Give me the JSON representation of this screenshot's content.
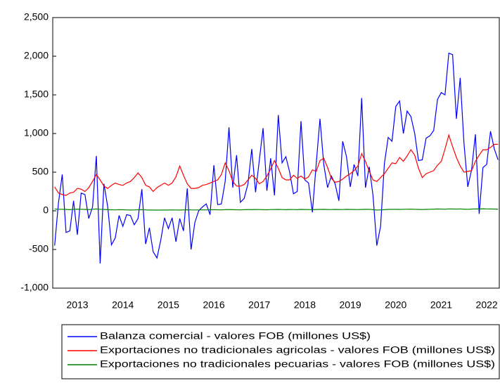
{
  "chart_data": {
    "type": "line",
    "categories": [
      null,
      null,
      null,
      null,
      null,
      null,
      "2013",
      null,
      null,
      null,
      null,
      null,
      null,
      null,
      null,
      null,
      null,
      null,
      "2014",
      null,
      null,
      null,
      null,
      null,
      null,
      null,
      null,
      null,
      null,
      null,
      "2015",
      null,
      null,
      null,
      null,
      null,
      null,
      null,
      null,
      null,
      null,
      null,
      "2016",
      null,
      null,
      null,
      null,
      null,
      null,
      null,
      null,
      null,
      null,
      null,
      "2017",
      null,
      null,
      null,
      null,
      null,
      null,
      null,
      null,
      null,
      null,
      null,
      "2018",
      null,
      null,
      null,
      null,
      null,
      null,
      null,
      null,
      null,
      null,
      null,
      "2019",
      null,
      null,
      null,
      null,
      null,
      null,
      null,
      null,
      null,
      null,
      null,
      "2020",
      null,
      null,
      null,
      null,
      null,
      null,
      null,
      null,
      null,
      null,
      null,
      "2021",
      null,
      null,
      null,
      null,
      null,
      null,
      null,
      null,
      null,
      null,
      null,
      "2022",
      null,
      null,
      null
    ],
    "ylim": [
      -1000,
      2500
    ],
    "yticks": [
      {
        "value": -1000,
        "label": "-1,000"
      },
      -500,
      0,
      500,
      {
        "value": 1000,
        "label": "1,000"
      },
      {
        "value": 1500,
        "label": "1,500"
      },
      {
        "value": 2000,
        "label": "2,000"
      },
      {
        "value": 2500,
        "label": "2,500"
      }
    ],
    "grid": false,
    "legend": "bottom",
    "series": [
      {
        "name": "Balanza comercial - valores FOB (millones US$)",
        "color": "#0000ff",
        "values": [
          -450,
          100,
          470,
          -280,
          -260,
          130,
          -310,
          230,
          210,
          -100,
          50,
          710,
          -680,
          350,
          50,
          -440,
          -350,
          -60,
          -200,
          -50,
          -60,
          -180,
          -100,
          280,
          -430,
          -220,
          -530,
          -610,
          -380,
          -90,
          -230,
          -90,
          -400,
          -100,
          -260,
          290,
          -500,
          -150,
          0,
          50,
          90,
          -50,
          590,
          80,
          90,
          380,
          1080,
          300,
          720,
          110,
          160,
          350,
          800,
          240,
          650,
          1070,
          260,
          680,
          200,
          1240,
          620,
          700,
          500,
          220,
          250,
          1160,
          400,
          360,
          -20,
          600,
          1190,
          600,
          300,
          450,
          350,
          130,
          900,
          700,
          310,
          600,
          450,
          1460,
          300,
          570,
          200,
          -450,
          -200,
          610,
          950,
          900,
          1350,
          1420,
          1000,
          1290,
          1220,
          1000,
          650,
          660,
          940,
          970,
          1040,
          1440,
          1530,
          1500,
          2040,
          2020,
          1190,
          1720,
          870,
          310,
          530,
          990,
          -40,
          560,
          600,
          1030,
          800,
          660
        ]
      },
      {
        "name": "Exportaciones no tradicionales agricolas - valores FOB (millones US$)",
        "color": "#ff0000",
        "values": [
          310,
          230,
          210,
          200,
          230,
          240,
          290,
          280,
          250,
          300,
          380,
          470,
          400,
          320,
          290,
          330,
          360,
          340,
          330,
          360,
          380,
          430,
          490,
          430,
          330,
          310,
          250,
          300,
          330,
          360,
          330,
          360,
          440,
          580,
          460,
          350,
          290,
          290,
          300,
          330,
          340,
          360,
          380,
          400,
          470,
          620,
          520,
          380,
          320,
          320,
          340,
          400,
          460,
          420,
          350,
          380,
          450,
          540,
          650,
          550,
          430,
          400,
          400,
          460,
          420,
          450,
          410,
          440,
          530,
          510,
          650,
          680,
          560,
          420,
          370,
          380,
          410,
          450,
          480,
          520,
          580,
          740,
          640,
          510,
          400,
          380,
          430,
          480,
          550,
          620,
          610,
          690,
          640,
          710,
          790,
          720,
          550,
          430,
          480,
          500,
          520,
          590,
          640,
          800,
          980,
          830,
          690,
          580,
          500,
          510,
          520,
          640,
          720,
          790,
          790,
          820,
          860,
          860
        ]
      },
      {
        "name": "Exportaciones no tradicionales pecuarias - valores FOB (millones US$)",
        "color": "#008000",
        "values": [
          25,
          20,
          20,
          18,
          15,
          20,
          22,
          20,
          18,
          15,
          20,
          25,
          20,
          18,
          15,
          14,
          12,
          15,
          14,
          12,
          10,
          12,
          14,
          15,
          12,
          10,
          10,
          9,
          10,
          11,
          10,
          12,
          11,
          10,
          12,
          14,
          12,
          11,
          12,
          13,
          12,
          14,
          15,
          14,
          13,
          15,
          16,
          15,
          14,
          13,
          15,
          16,
          15,
          17,
          16,
          15,
          14,
          16,
          17,
          18,
          16,
          15,
          17,
          16,
          15,
          18,
          17,
          16,
          15,
          17,
          18,
          19,
          17,
          16,
          18,
          17,
          16,
          19,
          18,
          17,
          16,
          18,
          19,
          20,
          15,
          10,
          12,
          15,
          18,
          20,
          19,
          18,
          20,
          21,
          22,
          20,
          18,
          17,
          19,
          20,
          22,
          24,
          23,
          22,
          25,
          24,
          23,
          25,
          22,
          20,
          23,
          25,
          24,
          26,
          25,
          24,
          23,
          22
        ]
      }
    ]
  }
}
